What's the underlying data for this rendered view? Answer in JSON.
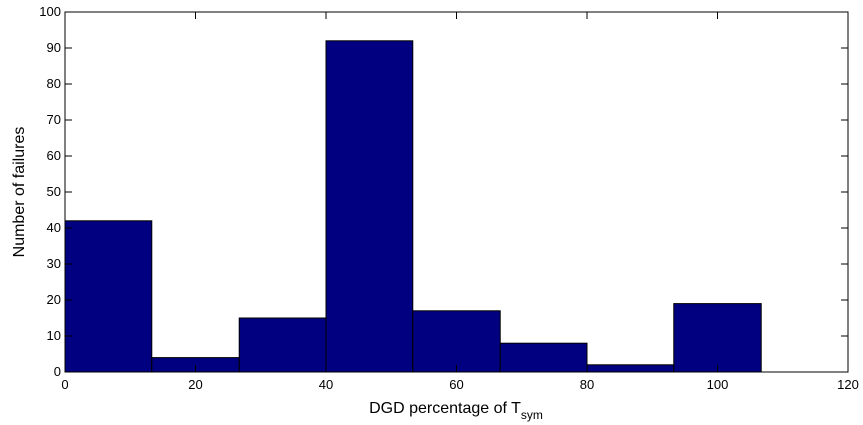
{
  "chart_data": {
    "type": "bar",
    "title": "",
    "xlabel": "DGD percentage of T",
    "xlabel_subscript": "sym",
    "ylabel": "Number of failures",
    "xlim": [
      0,
      120
    ],
    "ylim": [
      0,
      100
    ],
    "xticks": [
      0,
      20,
      40,
      60,
      80,
      100,
      120
    ],
    "yticks": [
      0,
      10,
      20,
      30,
      40,
      50,
      60,
      70,
      80,
      90,
      100
    ],
    "grid": false,
    "legend": "none",
    "bar_color": "#000080",
    "bins": [
      {
        "x0": 0.0,
        "x1": 13.3,
        "value": 42
      },
      {
        "x0": 13.3,
        "x1": 26.7,
        "value": 4
      },
      {
        "x0": 26.7,
        "x1": 40.0,
        "value": 15
      },
      {
        "x0": 40.0,
        "x1": 53.3,
        "value": 92
      },
      {
        "x0": 53.3,
        "x1": 66.7,
        "value": 17
      },
      {
        "x0": 66.7,
        "x1": 80.0,
        "value": 8
      },
      {
        "x0": 80.0,
        "x1": 93.3,
        "value": 2
      },
      {
        "x0": 93.3,
        "x1": 106.7,
        "value": 19
      }
    ]
  }
}
